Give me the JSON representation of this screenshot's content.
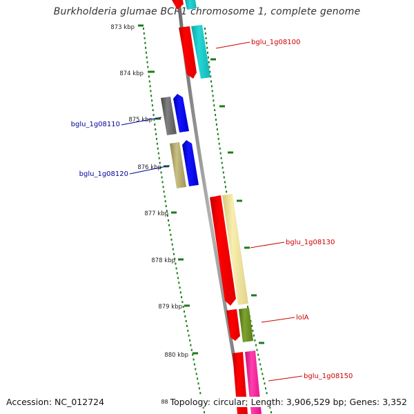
{
  "title": "Burkholderia glumae BCR1 chromosome 1, complete genome",
  "footer": {
    "accession": "Accession: NC_012724",
    "topology_fragment": "88",
    "topology": "Topology: circular; Length: 3,906,529 bp; Genes: 3,352"
  },
  "ruler": {
    "ticks": [
      "873 kbp",
      "874 kbp",
      "875 kbp",
      "876 kbp",
      "877 kbp",
      "878 kbp",
      "879 kbp",
      "880 kbp"
    ]
  },
  "gene_labels": {
    "bglu_1g08100": "bglu_1g08100",
    "bglu_1g08110": "bglu_1g08110",
    "bglu_1g08120": "bglu_1g08120",
    "bglu_1g08130": "bglu_1g08130",
    "lolA": "lolA",
    "bglu_1g08150": "bglu_1g08150"
  },
  "colors": {
    "forward_label": "#cc0000",
    "reverse_label": "#000099",
    "tick": "#1a7a1a",
    "backbone": "#808080",
    "red": "#ff0000",
    "cyan": "#1ec8c8",
    "blue": "#0000ee",
    "gray": "#666666",
    "khaki": "#b4aa6e",
    "paleyellow": "#f0e296",
    "olive": "#6b8e23",
    "pink": "#ff1493"
  }
}
